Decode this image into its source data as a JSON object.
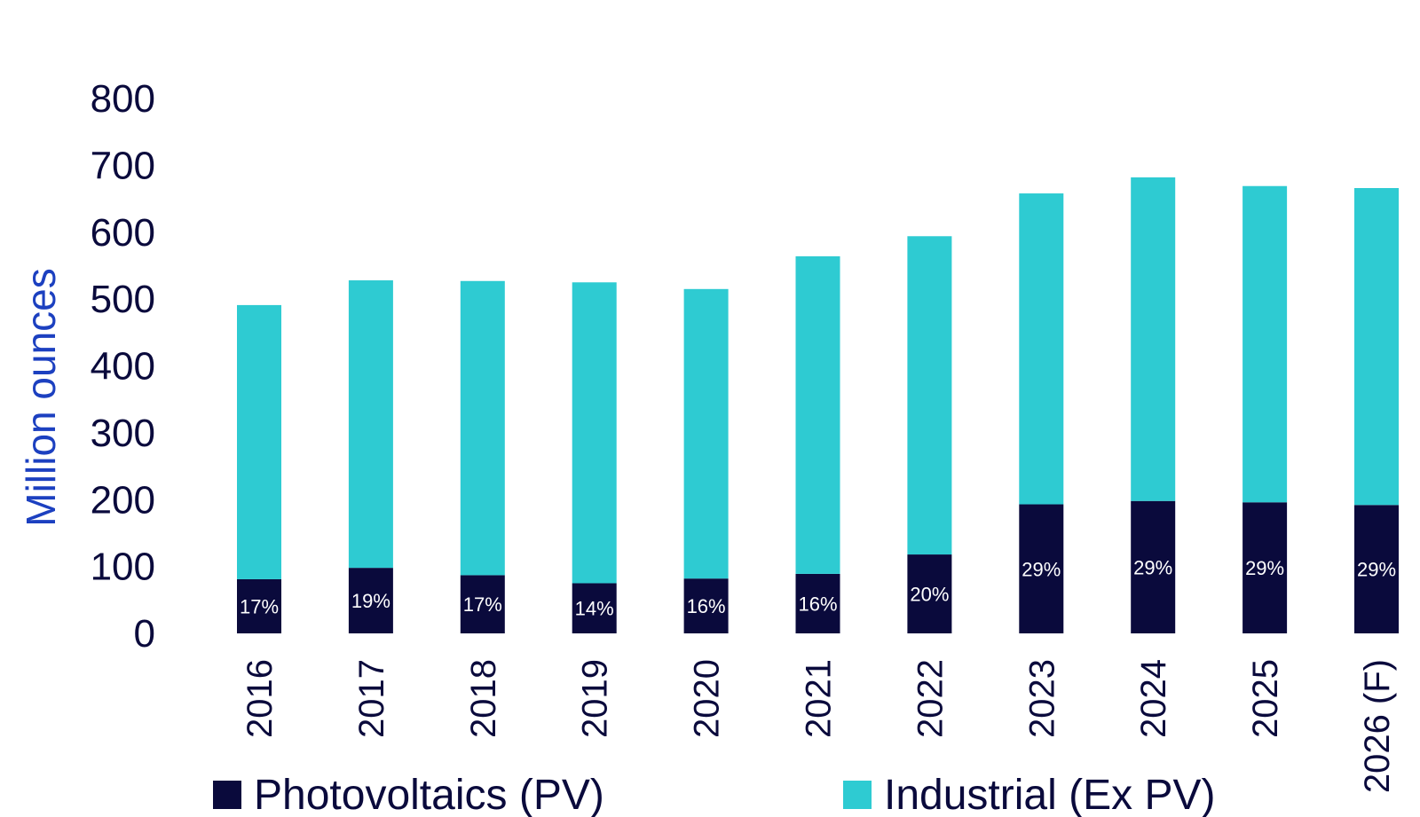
{
  "chart_data": {
    "type": "bar",
    "stacked": true,
    "title": "",
    "xlabel": "",
    "ylabel": "Million ounces",
    "ylim": [
      0,
      800
    ],
    "yticks": [
      0,
      100,
      200,
      300,
      400,
      500,
      600,
      700,
      800
    ],
    "grid": false,
    "legend_position": "bottom",
    "categories": [
      "2016",
      "2017",
      "2018",
      "2019",
      "2020",
      "2021",
      "2022",
      "2023",
      "2024",
      "2025",
      "2026 (F)"
    ],
    "series": [
      {
        "name": "Photovoltaics (PV)",
        "color": "#0a0a3c",
        "values": [
          81,
          98,
          87,
          75,
          82,
          89,
          118,
          193,
          198,
          196,
          192
        ],
        "labels": [
          "17%",
          "19%",
          "17%",
          "14%",
          "16%",
          "16%",
          "20%",
          "29%",
          "29%",
          "29%",
          "29%"
        ]
      },
      {
        "name": "Industrial (Ex PV)",
        "color": "#2ecbd2",
        "values": [
          410,
          430,
          440,
          450,
          433,
          475,
          476,
          465,
          484,
          473,
          474
        ]
      }
    ]
  }
}
